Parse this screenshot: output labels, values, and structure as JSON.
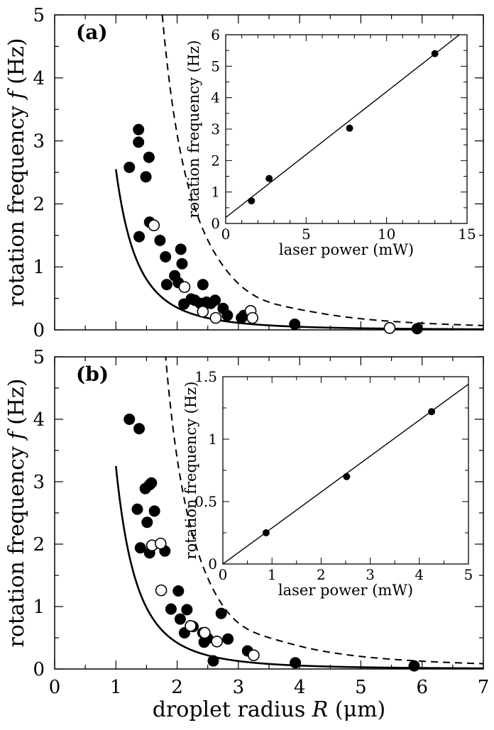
{
  "chart_data": [
    {
      "id": "panel-a",
      "type": "scatter",
      "panel_label": "(a)",
      "ylabel": "rotation frequency",
      "ylabel_symbol": "f",
      "ylabel_unit": "(Hz)",
      "xlim": [
        0,
        7
      ],
      "ylim": [
        0,
        5
      ],
      "y_ticks": [
        "0",
        "1",
        "2",
        "3",
        "4",
        "5"
      ],
      "fit_solid": {
        "A": 2.55,
        "p": 2.85
      },
      "fit_dashed": {
        "type": "shifted-power",
        "A": 7.2,
        "p": 2.5,
        "x0": 0.6,
        "center": 3.2,
        "depth": 0.08,
        "width": 0.6
      },
      "filled_points": [
        [
          1.22,
          2.58
        ],
        [
          1.37,
          3.18
        ],
        [
          1.37,
          2.98
        ],
        [
          1.38,
          1.48
        ],
        [
          1.49,
          2.43
        ],
        [
          1.54,
          2.74
        ],
        [
          1.55,
          1.71
        ],
        [
          1.72,
          1.42
        ],
        [
          1.81,
          1.16
        ],
        [
          1.83,
          0.72
        ],
        [
          1.96,
          0.86
        ],
        [
          2.02,
          0.75
        ],
        [
          2.06,
          1.28
        ],
        [
          2.08,
          1.05
        ],
        [
          2.11,
          0.41
        ],
        [
          2.23,
          0.49
        ],
        [
          2.29,
          0.47
        ],
        [
          2.38,
          0.42
        ],
        [
          2.42,
          0.72
        ],
        [
          2.48,
          0.44
        ],
        [
          2.55,
          0.42
        ],
        [
          2.62,
          0.47
        ],
        [
          2.75,
          0.34
        ],
        [
          2.82,
          0.23
        ],
        [
          3.05,
          0.19
        ],
        [
          3.09,
          0.23
        ],
        [
          3.92,
          0.09
        ],
        [
          5.92,
          0.02
        ]
      ],
      "open_points": [
        [
          1.62,
          1.66
        ],
        [
          2.12,
          0.68
        ],
        [
          2.42,
          0.29
        ],
        [
          2.63,
          0.19
        ],
        [
          3.2,
          0.3
        ],
        [
          3.23,
          0.19
        ],
        [
          5.47,
          0.03
        ]
      ],
      "inset": {
        "type": "scatter",
        "xlabel": "laser power  (mW)",
        "ylabel": "rotation frequency  (Hz)",
        "xlim": [
          0,
          15
        ],
        "ylim": [
          0,
          6
        ],
        "x_ticks": [
          "0",
          "5",
          "10",
          "15"
        ],
        "y_ticks": [
          "0",
          "1",
          "2",
          "3",
          "4",
          "5",
          "6"
        ],
        "points": [
          [
            1.6,
            0.72
          ],
          [
            2.7,
            1.43
          ],
          [
            7.7,
            3.03
          ],
          [
            13.0,
            5.4
          ]
        ],
        "fit_line": {
          "slope": 0.4,
          "intercept": 0.19
        }
      }
    },
    {
      "id": "panel-b",
      "type": "scatter",
      "panel_label": "(b)",
      "ylabel": "rotation frequency",
      "ylabel_symbol": "f",
      "ylabel_unit": "(Hz)",
      "xlabel": "droplet radius",
      "xlabel_symbol": "R",
      "xlabel_unit": "(μm)",
      "xlim": [
        0,
        7
      ],
      "ylim": [
        0,
        5
      ],
      "x_ticks": [
        "0",
        "1",
        "2",
        "3",
        "4",
        "5",
        "6",
        "7"
      ],
      "y_ticks": [
        "0",
        "1",
        "2",
        "3",
        "4",
        "5"
      ],
      "fit_solid": {
        "A": 3.25,
        "p": 2.95
      },
      "fit_dashed": {
        "type": "shifted-power",
        "A": 4.6,
        "p": 2.2,
        "x0": 0.85,
        "center": 2.9,
        "depth": 0.12,
        "width": 0.55
      },
      "filled_points": [
        [
          1.22,
          4.0
        ],
        [
          1.35,
          2.56
        ],
        [
          1.38,
          3.85
        ],
        [
          1.4,
          1.94
        ],
        [
          1.48,
          2.89
        ],
        [
          1.51,
          2.35
        ],
        [
          1.55,
          2.95
        ],
        [
          1.58,
          2.98
        ],
        [
          1.55,
          1.86
        ],
        [
          1.63,
          2.53
        ],
        [
          1.8,
          1.89
        ],
        [
          1.9,
          0.96
        ],
        [
          2.02,
          1.25
        ],
        [
          2.05,
          0.8
        ],
        [
          2.12,
          0.58
        ],
        [
          2.16,
          0.95
        ],
        [
          2.26,
          0.68
        ],
        [
          2.42,
          0.58
        ],
        [
          2.44,
          0.43
        ],
        [
          2.5,
          0.49
        ],
        [
          2.59,
          0.13
        ],
        [
          2.72,
          0.89
        ],
        [
          2.83,
          0.48
        ],
        [
          3.15,
          0.29
        ],
        [
          3.93,
          0.1
        ],
        [
          5.87,
          0.05
        ]
      ],
      "open_points": [
        [
          1.59,
          1.98
        ],
        [
          1.73,
          2.01
        ],
        [
          1.74,
          1.26
        ],
        [
          2.22,
          0.69
        ],
        [
          2.45,
          0.58
        ],
        [
          2.65,
          0.44
        ],
        [
          3.25,
          0.22
        ]
      ],
      "inset": {
        "type": "scatter",
        "xlabel": "laser power  (mW)",
        "ylabel": "rotation frequency  (Hz)",
        "xlim": [
          0,
          5
        ],
        "ylim": [
          0,
          1.5
        ],
        "x_ticks": [
          "0",
          "1",
          "2",
          "3",
          "4",
          "5"
        ],
        "y_ticks": [
          "0",
          "0.5",
          "1",
          "1.5"
        ],
        "points": [
          [
            0.88,
            0.25
          ],
          [
            2.52,
            0.7
          ],
          [
            4.25,
            1.22
          ]
        ],
        "fit_line": {
          "slope": 0.288,
          "intercept": 0.0
        }
      }
    }
  ]
}
